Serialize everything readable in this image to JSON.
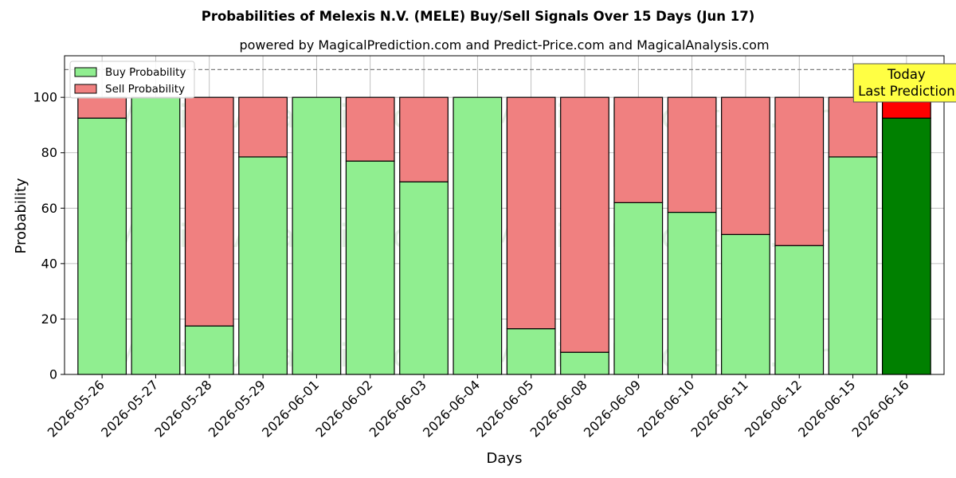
{
  "chart_data": {
    "type": "bar",
    "stacked": true,
    "title": "Probabilities of Melexis N.V. (MELE) Buy/Sell Signals Over 15 Days (Jun 17)",
    "subtitle": "powered by MagicalPrediction.com and Predict-Price.com and MagicalAnalysis.com",
    "xlabel": "Days",
    "ylabel": "Probability",
    "ylim": [
      0,
      115
    ],
    "yticks": [
      0,
      20,
      40,
      60,
      80,
      100
    ],
    "grid": true,
    "legend_placement": "top-left",
    "reference_line": 110,
    "categories": [
      "2026-05-26",
      "2026-05-27",
      "2026-05-28",
      "2026-05-29",
      "2026-06-01",
      "2026-06-02",
      "2026-06-03",
      "2026-06-04",
      "2026-06-05",
      "2026-06-08",
      "2026-06-09",
      "2026-06-10",
      "2026-06-11",
      "2026-06-12",
      "2026-06-15",
      "2026-06-16"
    ],
    "series": [
      {
        "name": "Buy Probability",
        "color": "#90ee90",
        "highlight_color": "#008000",
        "values": [
          92.5,
          100,
          17.5,
          78.5,
          100,
          77,
          69.5,
          100,
          16.5,
          8,
          62,
          58.5,
          50.5,
          46.5,
          78.5,
          92.5
        ]
      },
      {
        "name": "Sell Probability",
        "color": "#f08080",
        "highlight_color": "#ff0000",
        "values": [
          7.5,
          0,
          82.5,
          21.5,
          0,
          23,
          30.5,
          0,
          83.5,
          92,
          38,
          41.5,
          49.5,
          53.5,
          21.5,
          7.5
        ]
      }
    ],
    "annotation": {
      "lines": [
        "Today",
        "Last Prediction"
      ],
      "category_index": 15,
      "background": "#ffff44"
    },
    "watermarks": [
      "MagicalAnalysis.com",
      "MagicalPrediction.com"
    ]
  }
}
